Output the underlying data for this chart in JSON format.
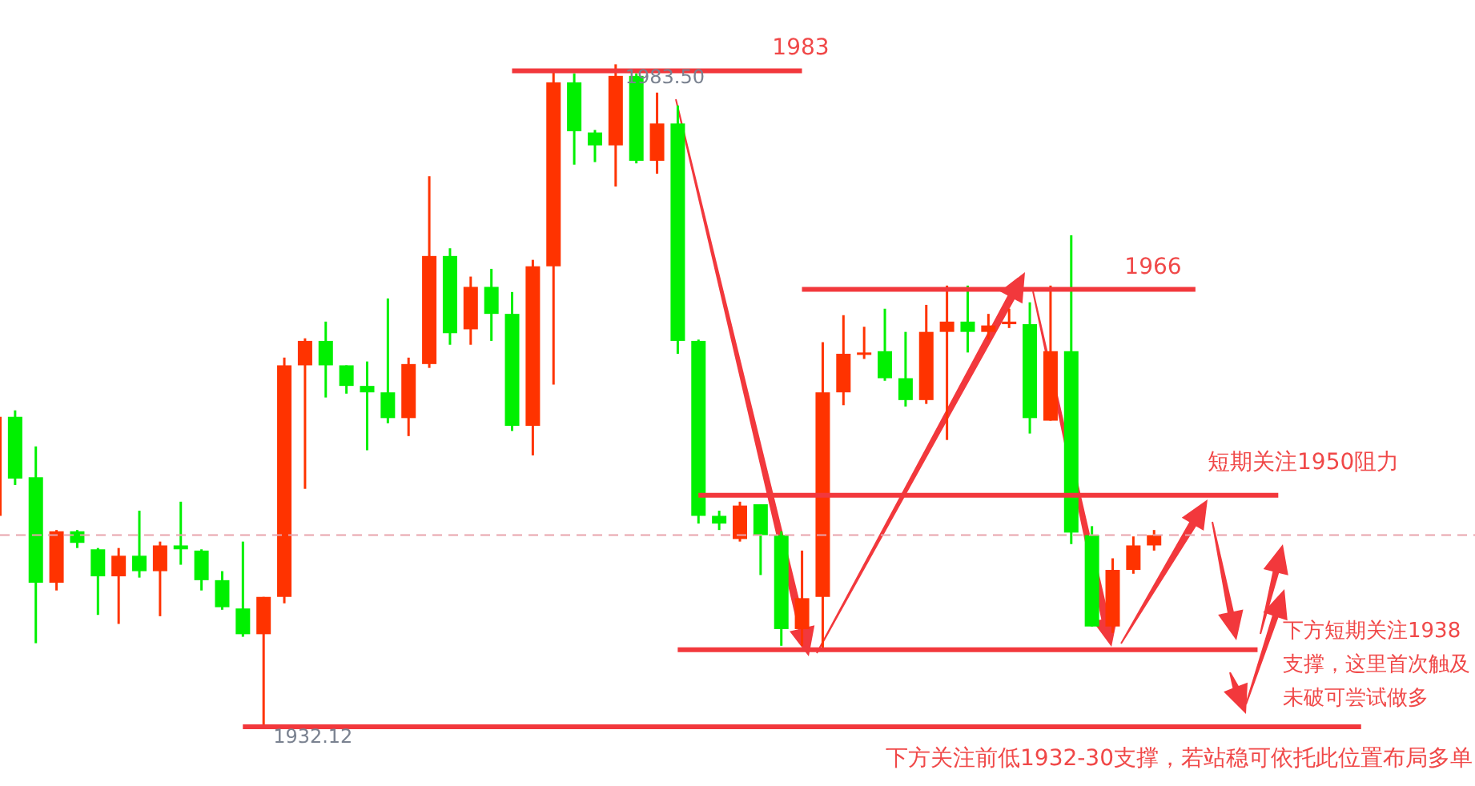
{
  "chart_data": {
    "type": "candlestick",
    "categories": [
      null,
      null,
      null,
      null,
      null,
      null,
      null,
      null,
      null,
      null,
      null,
      null,
      null,
      null,
      null,
      null,
      null,
      null,
      null,
      null,
      null,
      null,
      null,
      null,
      null,
      null,
      null,
      null,
      null,
      null,
      null,
      null,
      null,
      null,
      null,
      null,
      null,
      null,
      null,
      null,
      null,
      null,
      null,
      null,
      null,
      null,
      null,
      null,
      null,
      null,
      null,
      null,
      null,
      null,
      null,
      null,
      null,
      null,
      null,
      null,
      null,
      null,
      null,
      null,
      null,
      null,
      null,
      null,
      null,
      null,
      null,
      null
    ],
    "ohlc": [
      [
        1948.4,
        1956.1,
        1948.4,
        1956.1
      ],
      [
        1956.1,
        1956.6,
        1950.8,
        1951.3
      ],
      [
        1951.4,
        1953.8,
        1938.5,
        1943.2
      ],
      [
        1943.2,
        1947.3,
        1942.6,
        1947.2
      ],
      [
        1947.2,
        1947.3,
        1945.9,
        1946.3
      ],
      [
        1945.8,
        1945.9,
        1940.7,
        1943.7
      ],
      [
        1943.7,
        1945.9,
        1940.0,
        1945.3
      ],
      [
        1945.3,
        1948.8,
        1943.6,
        1944.1
      ],
      [
        1944.1,
        1946.4,
        1940.6,
        1946.1
      ],
      [
        1946.1,
        1949.5,
        1944.6,
        1945.8
      ],
      [
        1945.7,
        1945.8,
        1942.6,
        1943.4
      ],
      [
        1943.4,
        1944.1,
        1941.1,
        1941.3
      ],
      [
        1941.2,
        1946.4,
        1939.0,
        1939.2
      ],
      [
        1939.2,
        1942.1,
        1932.12,
        1942.1
      ],
      [
        1942.1,
        1960.7,
        1941.6,
        1960.1
      ],
      [
        1960.1,
        1962.2,
        1950.5,
        1962.0
      ],
      [
        1962.0,
        1963.5,
        1957.6,
        1960.1
      ],
      [
        1960.1,
        1960.1,
        1957.9,
        1958.5
      ],
      [
        1958.5,
        1960.4,
        1953.5,
        1958.0
      ],
      [
        1958.0,
        1965.3,
        1955.6,
        1956.0
      ],
      [
        1956.0,
        1960.7,
        1954.6,
        1960.2
      ],
      [
        1960.2,
        1974.8,
        1959.9,
        1968.6
      ],
      [
        1968.6,
        1969.2,
        1961.7,
        1962.6
      ],
      [
        1962.9,
        1967.0,
        1961.7,
        1966.2
      ],
      [
        1966.2,
        1967.6,
        1962.0,
        1964.1
      ],
      [
        1964.1,
        1965.8,
        1955.0,
        1955.4
      ],
      [
        1955.4,
        1968.3,
        1953.1,
        1967.8
      ],
      [
        1967.8,
        1983.1,
        1958.6,
        1982.1
      ],
      [
        1982.1,
        1982.8,
        1975.7,
        1978.3
      ],
      [
        1978.2,
        1978.4,
        1975.9,
        1977.2
      ],
      [
        1977.2,
        1983.5,
        1974.0,
        1982.6
      ],
      [
        1982.6,
        1982.8,
        1975.8,
        1976.0
      ],
      [
        1976.0,
        1981.3,
        1975.0,
        1978.9
      ],
      [
        1978.9,
        1980.3,
        1961.0,
        1962.0
      ],
      [
        1962.0,
        1962.1,
        1947.8,
        1948.4
      ],
      [
        1948.4,
        1948.8,
        1947.3,
        1947.8
      ],
      [
        1946.6,
        1949.5,
        1946.4,
        1949.2
      ],
      [
        1949.3,
        1949.3,
        1943.8,
        1946.9
      ],
      [
        1946.9,
        1947.2,
        1938.3,
        1939.6
      ],
      [
        1939.6,
        1945.7,
        1938.3,
        1942.0
      ],
      [
        1942.1,
        1961.9,
        1937.9,
        1958.0
      ],
      [
        1958.0,
        1964.0,
        1957.0,
        1961.0
      ],
      [
        1961.0,
        1963.1,
        1960.6,
        1961.1
      ],
      [
        1961.2,
        1964.5,
        1958.9,
        1959.1
      ],
      [
        1959.1,
        1962.7,
        1956.9,
        1957.4
      ],
      [
        1957.4,
        1964.8,
        1957.1,
        1962.7
      ],
      [
        1962.7,
        1966.3,
        1954.3,
        1963.5
      ],
      [
        1963.5,
        1966.3,
        1961.1,
        1962.7
      ],
      [
        1962.7,
        1964.1,
        1962.1,
        1963.2
      ],
      [
        1963.3,
        1964.5,
        1963.0,
        1963.5
      ],
      [
        1963.3,
        1965.0,
        1954.8,
        1956.0
      ],
      [
        1955.8,
        1966.3,
        1955.8,
        1961.2
      ],
      [
        1961.2,
        1970.2,
        1946.2,
        1947.1
      ],
      [
        1946.9,
        1947.6,
        1939.8,
        1939.8
      ],
      [
        1939.8,
        1945.1,
        1939.3,
        1944.2
      ],
      [
        1944.2,
        1946.8,
        1943.9,
        1946.1
      ],
      [
        1946.1,
        1947.3,
        1945.7,
        1946.9
      ],
      null,
      null,
      null,
      null,
      null,
      null,
      null,
      null,
      null,
      null,
      null,
      null,
      null,
      null,
      null
    ],
    "colors": [
      "#ff3300",
      "#00f000",
      "#00f000",
      "#ff3300",
      "#00f000",
      "#00f000",
      "#ff3300",
      "#00f000",
      "#ff3300",
      "#00f000",
      "#00f000",
      "#00f000",
      "#00f000",
      "#ff3300",
      "#ff3300",
      "#ff3300",
      "#00f000",
      "#00f000",
      "#00f000",
      "#00f000",
      "#ff3300",
      "#ff3300",
      "#00f000",
      "#ff3300",
      "#00f000",
      "#00f000",
      "#ff3300",
      "#ff3300",
      "#00f000",
      "#00f000",
      "#ff3300",
      "#00f000",
      "#ff3300",
      "#00f000",
      "#00f000",
      "#00f000",
      "#ff3300",
      "#00f000",
      "#00f000",
      "#ff3300",
      "#ff3300",
      "#ff3300",
      "#ff3300",
      "#00f000",
      "#00f000",
      "#ff3300",
      "#ff3300",
      "#00f000",
      "#ff3300",
      "#ff3300",
      "#00f000",
      "#ff3300",
      "#00f000",
      "#00f000",
      "#ff3300",
      "#ff3300",
      "#ff3300",
      null,
      null,
      null,
      null,
      null,
      null,
      null,
      null,
      null,
      null,
      null,
      null,
      null,
      null,
      null
    ],
    "ylim": [
      1927.4,
      1988.5
    ],
    "ref_lines": [
      {
        "axis": "y",
        "value": 1983,
        "label": "1983",
        "color": "#f2383c"
      },
      {
        "axis": "y",
        "value": 1966,
        "label": "1966",
        "color": "#f2383c"
      },
      {
        "axis": "y",
        "value": 1950,
        "label": "短期关注1950阻力",
        "color": "#f2383c"
      },
      {
        "axis": "y",
        "value": 1938,
        "label": "下方短期关注1938支撑，这里首次触及未破可尝试做多",
        "color": "#f2383c"
      },
      {
        "axis": "y",
        "value": 1932,
        "label": "下方关注前低1932-30支撑，若站稳可依托此位置布局多单",
        "color": "#f2383c"
      },
      {
        "axis": "y",
        "value": 1946.9,
        "color": "#e8a4ac",
        "line_style": "dashed"
      }
    ],
    "annotations": [
      {
        "text": "1983.50",
        "y": 1983.5
      },
      {
        "text": "1932.12",
        "y": 1932.12
      }
    ]
  }
}
